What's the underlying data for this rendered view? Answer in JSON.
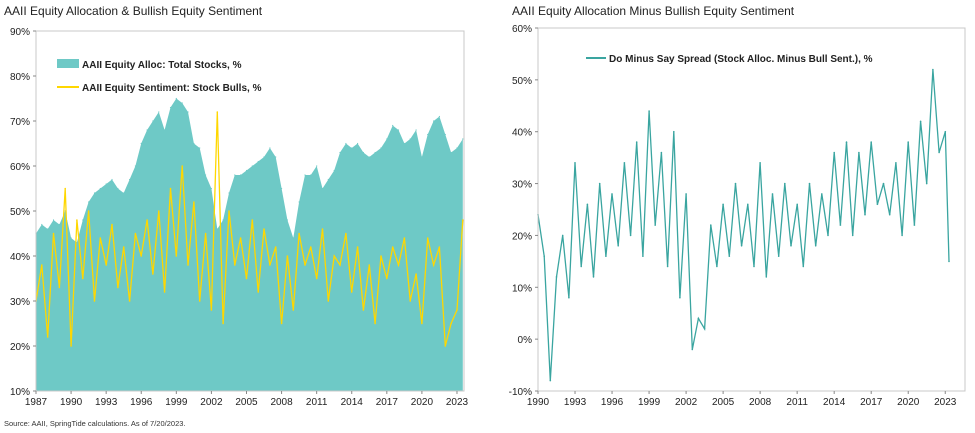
{
  "source_note": "Source: AAII, SpringTide calculations. As of 7/20/2023.",
  "colors": {
    "teal": "#6ec9c6",
    "teal_line": "#3aa5a0",
    "yellow": "#ffd700",
    "axis": "#888888",
    "grid": "#c8c8c8"
  },
  "chart_data": [
    {
      "type": "area",
      "title": "AAII Equity Allocation & Bullish Equity Sentiment",
      "xlabel": "",
      "ylabel": "",
      "xlim": [
        1987,
        2023.6
      ],
      "ylim": [
        10,
        90
      ],
      "x_ticks": [
        "1987",
        "1990",
        "1993",
        "1996",
        "1999",
        "2002",
        "2005",
        "2008",
        "2011",
        "2014",
        "2017",
        "2020",
        "2023"
      ],
      "y_ticks": [
        "10%",
        "20%",
        "30%",
        "40%",
        "50%",
        "60%",
        "70%",
        "80%",
        "90%"
      ],
      "grid": false,
      "legend_position": "top-left",
      "series": [
        {
          "name": "AAII Equity Alloc: Total Stocks, %",
          "style": "area",
          "x": [
            1987.0,
            1987.5,
            1988.0,
            1988.5,
            1989.0,
            1989.5,
            1990.0,
            1990.5,
            1991.0,
            1991.5,
            1992.0,
            1992.5,
            1993.0,
            1993.5,
            1994.0,
            1994.5,
            1995.0,
            1995.5,
            1996.0,
            1996.5,
            1997.0,
            1997.5,
            1998.0,
            1998.5,
            1999.0,
            1999.5,
            2000.0,
            2000.5,
            2001.0,
            2001.5,
            2002.0,
            2002.5,
            2003.0,
            2003.5,
            2004.0,
            2004.5,
            2005.0,
            2005.5,
            2006.0,
            2006.5,
            2007.0,
            2007.5,
            2008.0,
            2008.5,
            2009.0,
            2009.5,
            2010.0,
            2010.5,
            2011.0,
            2011.5,
            2012.0,
            2012.5,
            2013.0,
            2013.5,
            2014.0,
            2014.5,
            2015.0,
            2015.5,
            2016.0,
            2016.5,
            2017.0,
            2017.5,
            2018.0,
            2018.5,
            2019.0,
            2019.5,
            2020.0,
            2020.5,
            2021.0,
            2021.5,
            2022.0,
            2022.5,
            2023.0,
            2023.5
          ],
          "values": [
            45,
            47,
            46,
            48,
            47,
            50,
            44,
            43,
            48,
            52,
            54,
            55,
            56,
            57,
            55,
            54,
            57,
            60,
            65,
            68,
            70,
            72,
            68,
            73,
            75,
            74,
            72,
            65,
            64,
            58,
            55,
            46,
            48,
            54,
            58,
            58,
            59,
            60,
            61,
            62,
            64,
            62,
            55,
            48,
            44,
            52,
            58,
            58,
            60,
            55,
            57,
            59,
            63,
            65,
            64,
            65,
            63,
            62,
            63,
            64,
            66,
            69,
            68,
            65,
            66,
            68,
            62,
            67,
            70,
            71,
            67,
            63,
            64,
            66
          ]
        },
        {
          "name": "AAII Equity Sentiment: Stock Bulls, %",
          "style": "line",
          "x": [
            1987.0,
            1987.5,
            1988.0,
            1988.5,
            1989.0,
            1989.5,
            1990.0,
            1990.5,
            1991.0,
            1991.5,
            1992.0,
            1992.5,
            1993.0,
            1993.5,
            1994.0,
            1994.5,
            1995.0,
            1995.5,
            1996.0,
            1996.5,
            1997.0,
            1997.5,
            1998.0,
            1998.5,
            1999.0,
            1999.5,
            2000.0,
            2000.5,
            2001.0,
            2001.5,
            2002.0,
            2002.5,
            2003.0,
            2003.5,
            2004.0,
            2004.5,
            2005.0,
            2005.5,
            2006.0,
            2006.5,
            2007.0,
            2007.5,
            2008.0,
            2008.5,
            2009.0,
            2009.5,
            2010.0,
            2010.5,
            2011.0,
            2011.5,
            2012.0,
            2012.5,
            2013.0,
            2013.5,
            2014.0,
            2014.5,
            2015.0,
            2015.5,
            2016.0,
            2016.5,
            2017.0,
            2017.5,
            2018.0,
            2018.5,
            2019.0,
            2019.5,
            2020.0,
            2020.5,
            2021.0,
            2021.5,
            2022.0,
            2022.5,
            2023.0,
            2023.5
          ],
          "values": [
            30,
            38,
            22,
            45,
            33,
            55,
            20,
            48,
            35,
            50,
            30,
            44,
            38,
            47,
            33,
            42,
            30,
            45,
            40,
            48,
            36,
            50,
            32,
            55,
            40,
            60,
            38,
            52,
            30,
            45,
            28,
            72,
            25,
            50,
            38,
            44,
            35,
            48,
            32,
            46,
            38,
            42,
            25,
            40,
            28,
            45,
            38,
            42,
            35,
            46,
            30,
            40,
            38,
            45,
            32,
            42,
            28,
            38,
            25,
            40,
            35,
            42,
            38,
            44,
            30,
            36,
            25,
            44,
            38,
            42,
            20,
            25,
            28,
            48
          ]
        }
      ]
    },
    {
      "type": "line",
      "title": "AAII Equity Allocation Minus Bullish Equity Sentiment",
      "xlabel": "",
      "ylabel": "",
      "xlim": [
        1990,
        2024.6
      ],
      "ylim": [
        -10,
        60
      ],
      "x_ticks": [
        "1990",
        "1993",
        "1996",
        "1999",
        "2002",
        "2005",
        "2008",
        "2011",
        "2014",
        "2017",
        "2020",
        "2023"
      ],
      "y_ticks": [
        "-10%",
        "0%",
        "10%",
        "20%",
        "30%",
        "40%",
        "50%",
        "60%"
      ],
      "grid": false,
      "legend_position": "top-left",
      "series": [
        {
          "name": "Do Minus Say Spread (Stock Alloc. Minus Bull Sent.), %",
          "x": [
            1990.0,
            1990.5,
            1991.0,
            1991.5,
            1992.0,
            1992.5,
            1993.0,
            1993.5,
            1994.0,
            1994.5,
            1995.0,
            1995.5,
            1996.0,
            1996.5,
            1997.0,
            1997.5,
            1998.0,
            1998.5,
            1999.0,
            1999.5,
            2000.0,
            2000.5,
            2001.0,
            2001.5,
            2002.0,
            2002.5,
            2003.0,
            2003.5,
            2004.0,
            2004.5,
            2005.0,
            2005.5,
            2006.0,
            2006.5,
            2007.0,
            2007.5,
            2008.0,
            2008.5,
            2009.0,
            2009.5,
            2010.0,
            2010.5,
            2011.0,
            2011.5,
            2012.0,
            2012.5,
            2013.0,
            2013.5,
            2014.0,
            2014.5,
            2015.0,
            2015.5,
            2016.0,
            2016.5,
            2017.0,
            2017.5,
            2018.0,
            2018.5,
            2019.0,
            2019.5,
            2020.0,
            2020.5,
            2021.0,
            2021.5,
            2022.0,
            2022.5,
            2023.0,
            2023.3
          ],
          "values": [
            24,
            16,
            -8,
            12,
            20,
            8,
            34,
            14,
            26,
            12,
            30,
            16,
            28,
            18,
            34,
            20,
            38,
            16,
            44,
            22,
            36,
            14,
            40,
            8,
            28,
            -2,
            4,
            2,
            22,
            14,
            26,
            16,
            30,
            18,
            26,
            14,
            34,
            12,
            28,
            16,
            30,
            18,
            26,
            14,
            30,
            18,
            28,
            20,
            36,
            22,
            38,
            20,
            36,
            24,
            38,
            26,
            30,
            24,
            34,
            20,
            38,
            22,
            42,
            30,
            52,
            36,
            40,
            15
          ]
        }
      ]
    }
  ]
}
